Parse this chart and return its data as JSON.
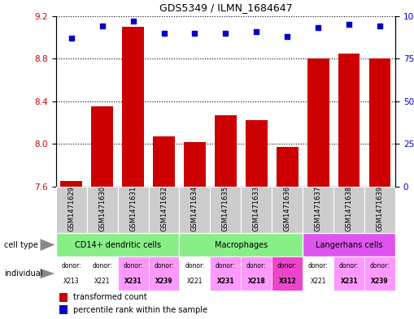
{
  "title": "GDS5349 / ILMN_1684647",
  "samples": [
    "GSM1471629",
    "GSM1471630",
    "GSM1471631",
    "GSM1471632",
    "GSM1471634",
    "GSM1471635",
    "GSM1471633",
    "GSM1471636",
    "GSM1471637",
    "GSM1471638",
    "GSM1471639"
  ],
  "bar_values": [
    7.65,
    8.35,
    9.1,
    8.07,
    8.02,
    8.27,
    8.22,
    7.97,
    8.8,
    8.85,
    8.8
  ],
  "dot_values": [
    87,
    94,
    97,
    90,
    90,
    90,
    91,
    88,
    93,
    95,
    94
  ],
  "ylim_left": [
    7.6,
    9.2
  ],
  "ylim_right": [
    0,
    100
  ],
  "yticks_left": [
    7.6,
    8.0,
    8.4,
    8.8,
    9.2
  ],
  "yticks_right": [
    0,
    25,
    50,
    75,
    100
  ],
  "ytick_labels_right": [
    "0",
    "25",
    "50",
    "75",
    "100%"
  ],
  "bar_color": "#cc0000",
  "dot_color": "#0000cc",
  "cell_types": [
    {
      "label": "CD14+ dendritic cells",
      "start": 0,
      "end": 4,
      "color": "#88ee88"
    },
    {
      "label": "Macrophages",
      "start": 4,
      "end": 8,
      "color": "#88ee88"
    },
    {
      "label": "Langerhans cells",
      "start": 8,
      "end": 11,
      "color": "#dd55ee"
    }
  ],
  "donors": [
    "X213",
    "X221",
    "X231",
    "X239",
    "X221",
    "X231",
    "X218",
    "X312",
    "X221",
    "X231",
    "X239"
  ],
  "donor_colors": [
    "#ffffff",
    "#ffffff",
    "#ff99ff",
    "#ff99ff",
    "#ffffff",
    "#ff99ff",
    "#ff99ff",
    "#ee44cc",
    "#ffffff",
    "#ff99ff",
    "#ff99ff"
  ],
  "sample_box_color": "#cccccc",
  "background_color": "#ffffff"
}
